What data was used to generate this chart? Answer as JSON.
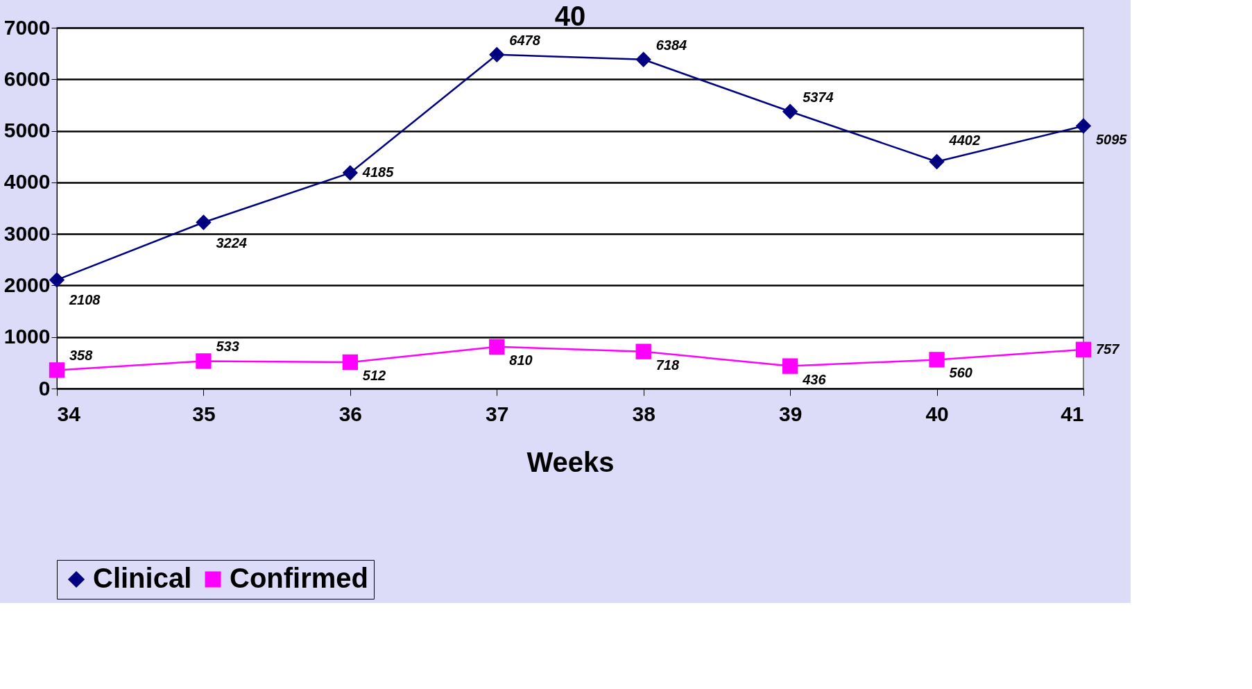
{
  "chart_data": {
    "type": "line",
    "title": "40",
    "xlabel": "Weeks",
    "x": [
      34,
      35,
      36,
      37,
      38,
      39,
      40,
      41
    ],
    "series": [
      {
        "name": "Clinical",
        "color": "#000080",
        "marker": "diamond",
        "values": [
          2108,
          3224,
          4185,
          6478,
          6384,
          5374,
          4402,
          5095
        ]
      },
      {
        "name": "Confirmed",
        "color": "#ff00ff",
        "marker": "square",
        "values": [
          358,
          533,
          512,
          810,
          718,
          436,
          560,
          757
        ]
      }
    ],
    "xlim": [
      34,
      41
    ],
    "xticks": [
      34,
      35,
      36,
      37,
      38,
      39,
      40,
      41
    ],
    "ylim": [
      0,
      7000
    ],
    "yticks": [
      0,
      1000,
      2000,
      3000,
      4000,
      5000,
      6000,
      7000
    ],
    "grid": "y",
    "legend": "bottom",
    "data_labels": true,
    "line_style": "solid"
  }
}
